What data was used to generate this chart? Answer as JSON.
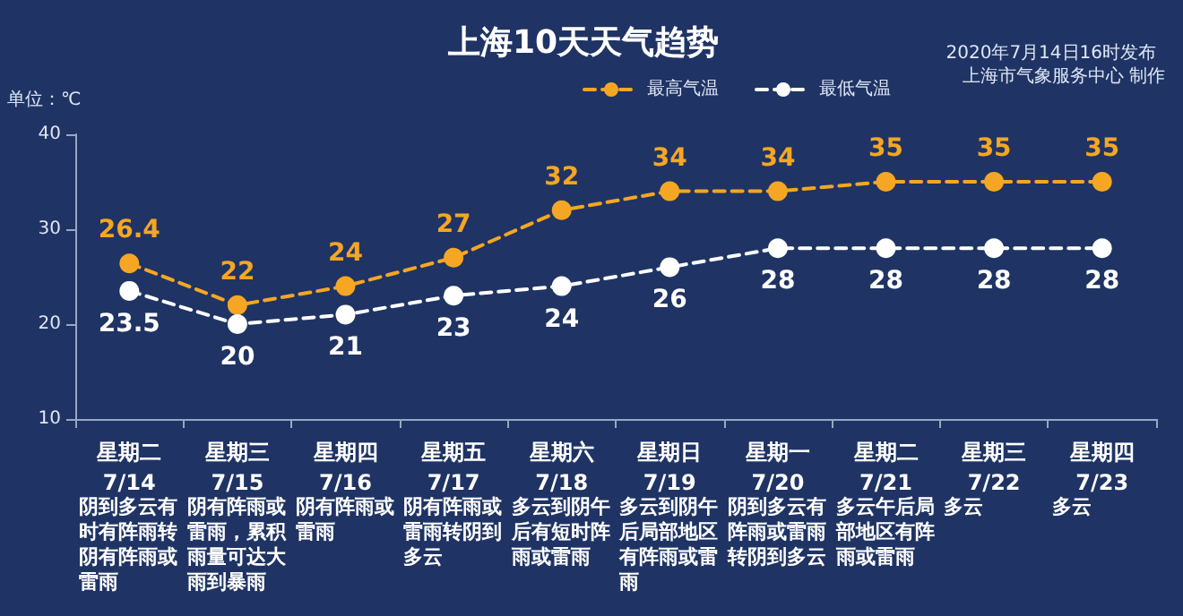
{
  "chart_data": {
    "type": "line",
    "title": "上海10天天气趋势",
    "subtitle": "2020年7月14日16时发布",
    "ylabel": "单位：℃",
    "categories": [
      "星期二\n7/14",
      "星期三\n7/15",
      "星期四\n7/16",
      "星期五\n7/17",
      "星期六\n7/18",
      "星期日\n7/19",
      "星期一\n7/20",
      "星期二\n7/21",
      "星期三\n7/22",
      "星期四\n7/23"
    ],
    "series": [
      {
        "name": "最高气温",
        "color": "#f5a623",
        "values": [
          26.4,
          22,
          24,
          27,
          32,
          34,
          34,
          35,
          35,
          35
        ]
      },
      {
        "name": "最低气温",
        "color": "#ffffff",
        "values": [
          23.5,
          20,
          21,
          23,
          24,
          26,
          28,
          28,
          28,
          28
        ]
      }
    ],
    "ylim": [
      10,
      40
    ],
    "yticks": [
      10,
      20,
      30,
      40
    ],
    "grid": false,
    "legend": "top right",
    "marker": "circle",
    "line_style": "dashed",
    "data_labels": true,
    "annotations": [
      "上海市气象服务中心 制作",
      "阴到多云有时有阵雨转阴有阵雨或雷雨",
      "阴有阵雨或雷雨，累积雨量可达大雨到暴雨",
      "阴有阵雨或雷雨",
      "阴有阵雨或雷雨转阴到多云",
      "多云到阴午后有短时阵雨或雷雨",
      "多云到阴午后局部地区有阵雨或雷雨",
      "阴到多云有阵雨或雷雨转阴到多云",
      "多云午后局部地区有阵雨或雷雨",
      "多云",
      "多云"
    ]
  }
}
